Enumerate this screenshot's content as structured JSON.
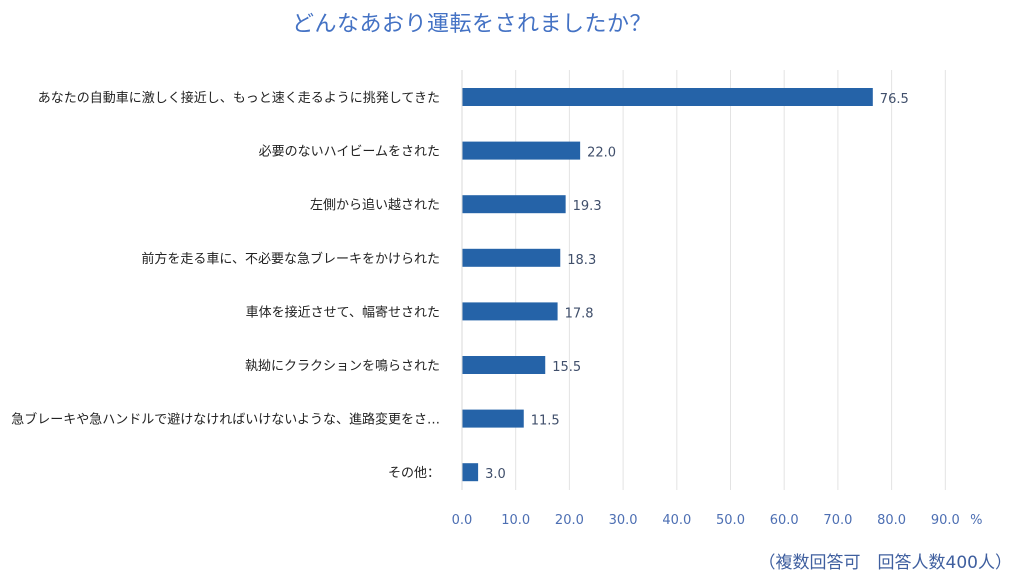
{
  "chart_data": {
    "type": "bar",
    "orientation": "horizontal",
    "title": "どんなあおり運転をされましたか？",
    "categories": [
      "あなたの自動車に激しく接近し、もっと速く走るように挑発してきた",
      "必要のないハイビームをされた",
      "左側から追い越された",
      "前方を走る車に、不必要な急ブレーキをかけられた",
      "車体を接近させて、幅寄せされた",
      "執拗にクラクションを鳴らされた",
      "急ブレーキや急ハンドルで避けなければいけないような、進路変更をさ…",
      "その他："
    ],
    "values": [
      76.5,
      22.0,
      19.3,
      18.3,
      17.8,
      15.5,
      11.5,
      3.0
    ],
    "value_labels": [
      "76.5",
      "22.0",
      "19.3",
      "18.3",
      "17.8",
      "15.5",
      "11.5",
      "3.0"
    ],
    "xlim": [
      0,
      90
    ],
    "xticks": [
      "0.0",
      "10.0",
      "20.0",
      "30.0",
      "40.0",
      "50.0",
      "60.0",
      "70.0",
      "80.0",
      "90.0"
    ],
    "xunit": "%",
    "grid": "vertical",
    "bar_color": "#2563a8",
    "footnote": "（複数回答可　回答人数400人）"
  }
}
